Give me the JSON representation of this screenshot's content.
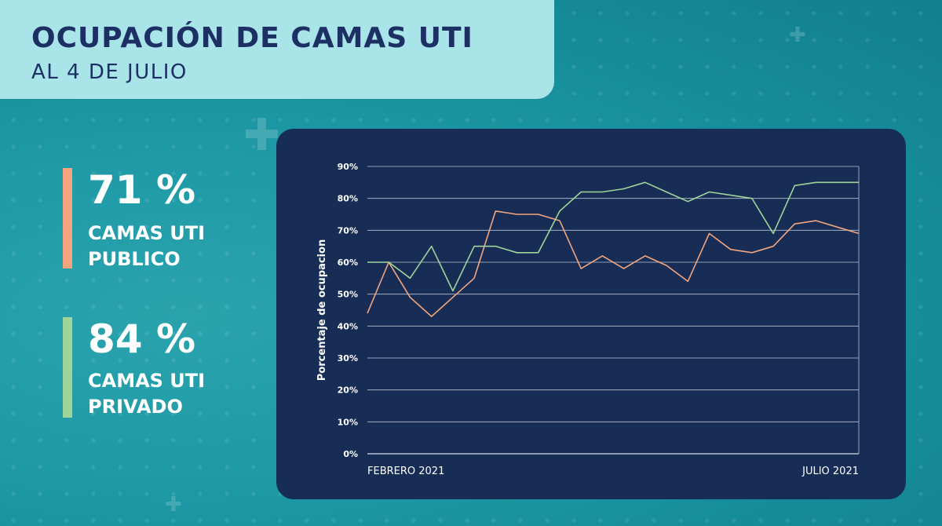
{
  "header": {
    "title": "OCUPACIÓN DE CAMAS UTI",
    "subtitle": "AL 4 DE JULIO"
  },
  "stats": [
    {
      "value": "71 %",
      "line1": "CAMAS UTI",
      "line2": "PUBLICO",
      "color": "#f2a57e"
    },
    {
      "value": "84 %",
      "line1": "CAMAS UTI",
      "line2": "PRIVADO",
      "color": "#9fd49a"
    }
  ],
  "colors": {
    "banner": "#a9e4e9",
    "title": "#1d3064",
    "chart_bg": "#172d55",
    "publico": "#f2a57e",
    "privado": "#9fd49a"
  },
  "chart_data": {
    "type": "line",
    "ylabel": "Porcentaje de ocupacion",
    "xlabel": "",
    "x_start_label": "FEBRERO 2021",
    "x_end_label": "JULIO 2021",
    "yticks": [
      "0%",
      "10%",
      "20%",
      "30%",
      "40%",
      "50%",
      "60%",
      "70%",
      "80%",
      "90%"
    ],
    "ylim": [
      0,
      90
    ],
    "grid": true,
    "series": [
      {
        "color": "#f2a57e",
        "values": [
          44,
          60,
          49,
          43,
          49,
          55,
          76,
          75,
          75,
          73,
          58,
          62,
          58,
          62,
          59,
          54,
          69,
          64,
          63,
          65,
          72,
          73,
          71,
          69
        ]
      },
      {
        "color": "#9fd49a",
        "values": [
          60,
          60,
          55,
          65,
          51,
          65,
          65,
          63,
          63,
          76,
          82,
          82,
          83,
          85,
          82,
          79,
          82,
          81,
          80,
          69,
          84,
          85,
          85,
          85
        ]
      }
    ]
  }
}
